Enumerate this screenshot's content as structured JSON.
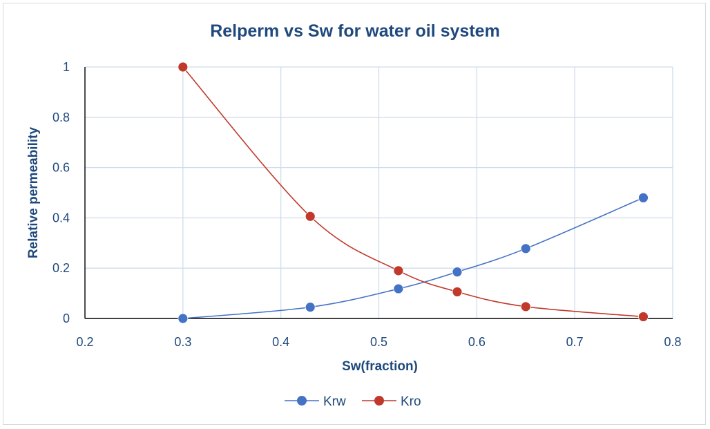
{
  "chart_data": {
    "type": "line",
    "title": "Relperm vs Sw for water oil system",
    "xlabel": "Sw(fraction)",
    "ylabel": "Relative permeability",
    "xlim": [
      0.2,
      0.8
    ],
    "ylim": [
      0,
      1
    ],
    "x_ticks": [
      "0.2",
      "0.3",
      "0.4",
      "0.5",
      "0.6",
      "0.7",
      "0.8"
    ],
    "y_ticks": [
      "0",
      "0.2",
      "0.4",
      "0.6",
      "0.8",
      "1"
    ],
    "x_tick_values": [
      0.2,
      0.3,
      0.4,
      0.5,
      0.6,
      0.7,
      0.8
    ],
    "y_tick_values": [
      0,
      0.2,
      0.4,
      0.6,
      0.8,
      1
    ],
    "grid": true,
    "smooth": true,
    "legend_position": "bottom",
    "series": [
      {
        "name": "Krw",
        "color": "#4472c4",
        "x": [
          0.3,
          0.43,
          0.52,
          0.58,
          0.65,
          0.77
        ],
        "y": [
          0,
          0.045,
          0.118,
          0.185,
          0.278,
          0.48
        ]
      },
      {
        "name": "Kro",
        "color": "#c0392b",
        "x": [
          0.3,
          0.43,
          0.52,
          0.58,
          0.65,
          0.77
        ],
        "y": [
          1,
          0.406,
          0.19,
          0.106,
          0.047,
          0.007
        ]
      }
    ]
  }
}
